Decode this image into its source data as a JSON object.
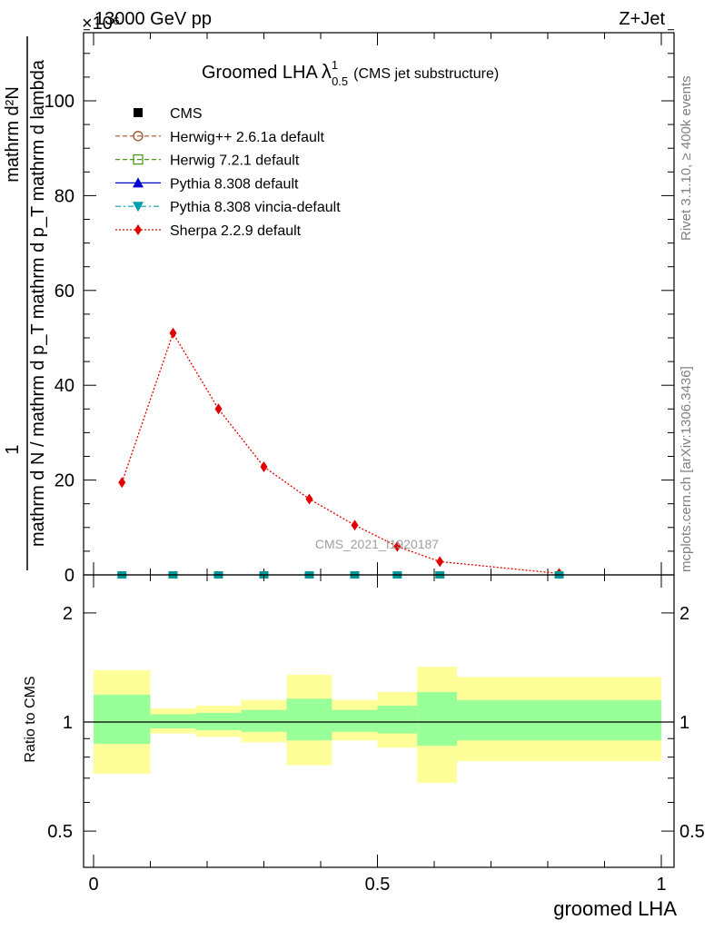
{
  "header": {
    "energy_label": "13000 GeV pp",
    "process_label": "Z+Jet",
    "exponent_label": "×10⁶"
  },
  "side_labels": {
    "rivet": "Rivet 3.1.10, ≥ 400k events",
    "mcplots": "mcplots.cern.ch [arXiv:1306.3436]"
  },
  "watermark": "CMS_2021_I1920187",
  "chart_data": [
    {
      "type": "line",
      "title_main": "Groomed LHA",
      "title_lambda": "λ",
      "title_sup": "1",
      "title_sub": "0.5",
      "title_suffix": "(CMS jet substructure)",
      "ylabel_top": "1",
      "ylabel_numer": "mathrm d²N",
      "ylabel_denom": "mathrm d N / mathrm d p_T mathrm d p_T mathrm d lambda",
      "xlim": [
        0,
        1
      ],
      "ylim": [
        0,
        115
      ],
      "yticks": [
        0,
        20,
        40,
        60,
        80,
        100
      ],
      "ytick_labels": [
        "0",
        "20",
        "40",
        "60",
        "80",
        "100"
      ],
      "legend_position": "top-left",
      "legend": [
        {
          "name": "CMS",
          "color": "#000000",
          "marker": "square-filled",
          "line": "none"
        },
        {
          "name": "Herwig++ 2.6.1a default",
          "color": "#a0522d",
          "marker": "circle-open",
          "line": "dashed"
        },
        {
          "name": "Herwig 7.2.1 default",
          "color": "#4a9a1a",
          "marker": "square-open",
          "line": "dashed"
        },
        {
          "name": "Pythia 8.308 default",
          "color": "#0000cc",
          "marker": "triangle-up",
          "line": "solid"
        },
        {
          "name": "Pythia 8.308 vincia-default",
          "color": "#00a0b0",
          "marker": "triangle-down",
          "line": "dashdot"
        },
        {
          "name": "Sherpa 2.2.9 default",
          "color": "#e00000",
          "marker": "diamond",
          "line": "dotted"
        }
      ],
      "series": [
        {
          "name": "Sherpa 2.2.9 default",
          "color": "#e00000",
          "x": [
            0.05,
            0.14,
            0.22,
            0.3,
            0.38,
            0.46,
            0.535,
            0.61,
            0.82
          ],
          "y": [
            19.5,
            51,
            35,
            22.8,
            16,
            10.5,
            6,
            2.8,
            0.3
          ]
        }
      ],
      "flat_markers": {
        "x": [
          0.05,
          0.14,
          0.22,
          0.3,
          0.38,
          0.46,
          0.535,
          0.61,
          0.82
        ],
        "y": [
          0,
          0,
          0,
          0,
          0,
          0,
          0,
          0,
          0
        ],
        "color": "#009999"
      }
    },
    {
      "type": "area",
      "ylabel": "Ratio to CMS",
      "xlabel": "groomed LHA",
      "xlim": [
        0,
        1
      ],
      "ylim": [
        0.42,
        2.3
      ],
      "yticks": [
        0.5,
        1,
        2
      ],
      "ytick_labels": [
        "0.5",
        "1",
        "2"
      ],
      "xticks": [
        0,
        0.5,
        1
      ],
      "xtick_labels": [
        "0",
        "0.5",
        "1"
      ],
      "band_colors": {
        "inner": "#99ff99",
        "outer": "#ffff99"
      },
      "bands": [
        {
          "x0": 0.0,
          "x1": 0.1,
          "outer_lo": 0.72,
          "outer_hi": 1.39,
          "inner_lo": 0.87,
          "inner_hi": 1.19
        },
        {
          "x0": 0.1,
          "x1": 0.18,
          "outer_lo": 0.93,
          "outer_hi": 1.09,
          "inner_lo": 0.96,
          "inner_hi": 1.05
        },
        {
          "x0": 0.18,
          "x1": 0.26,
          "outer_lo": 0.91,
          "outer_hi": 1.11,
          "inner_lo": 0.95,
          "inner_hi": 1.06
        },
        {
          "x0": 0.26,
          "x1": 0.34,
          "outer_lo": 0.88,
          "outer_hi": 1.15,
          "inner_lo": 0.94,
          "inner_hi": 1.08
        },
        {
          "x0": 0.34,
          "x1": 0.42,
          "outer_lo": 0.76,
          "outer_hi": 1.35,
          "inner_lo": 0.89,
          "inner_hi": 1.16
        },
        {
          "x0": 0.42,
          "x1": 0.5,
          "outer_lo": 0.89,
          "outer_hi": 1.15,
          "inner_lo": 0.94,
          "inner_hi": 1.08
        },
        {
          "x0": 0.5,
          "x1": 0.57,
          "outer_lo": 0.85,
          "outer_hi": 1.21,
          "inner_lo": 0.93,
          "inner_hi": 1.11
        },
        {
          "x0": 0.57,
          "x1": 0.64,
          "outer_lo": 0.68,
          "outer_hi": 1.42,
          "inner_lo": 0.86,
          "inner_hi": 1.21
        },
        {
          "x0": 0.64,
          "x1": 1.0,
          "outer_lo": 0.78,
          "outer_hi": 1.33,
          "inner_lo": 0.89,
          "inner_hi": 1.15
        }
      ],
      "reference_line": 1
    }
  ]
}
